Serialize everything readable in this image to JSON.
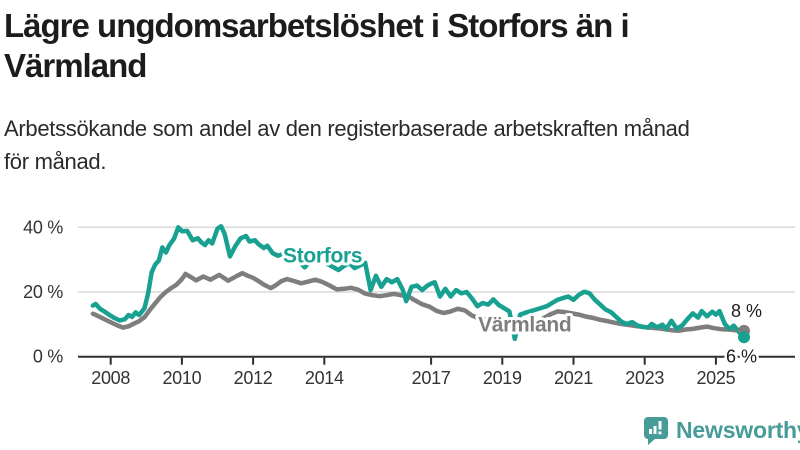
{
  "header": {
    "title_lines": [
      "Lägre ungdomsarbetslöshet i Storfors än i",
      "Värmland"
    ],
    "subtitle_lines": [
      "Arbetssökande som andel av den registerbaserade arbetskraften månad",
      "för månad."
    ]
  },
  "footer": {
    "brand": "Newsworthy",
    "brand_color": "#479c97",
    "brand_icon": "bar-chart-speech-bubble-icon"
  },
  "colors": {
    "storfors_line": "#18a191",
    "varmland_line": "#7e7e7e",
    "gridline": "#d9d9d9",
    "axis": "#2e2e2e",
    "axis_text": "#333333",
    "end_label_text": "#1c1c1c",
    "background": "#ffffff"
  },
  "chart_data": {
    "type": "line",
    "x_unit": "decimal year (monthly data)",
    "y_unit": "percent of registered labour force",
    "xlim": [
      2007.4,
      2025.95
    ],
    "ylim": [
      0,
      43
    ],
    "grid": "horizontal gridlines at 20 and 40 only",
    "legend_position": "inline labels on lines",
    "y_ticks": [
      {
        "value": 0,
        "label": "0 %"
      },
      {
        "value": 20,
        "label": "20 %"
      },
      {
        "value": 40,
        "label": "40 %"
      }
    ],
    "grid_values": [
      20,
      40
    ],
    "x_ticks": [
      2008,
      2010,
      2012,
      2014,
      2017,
      2019,
      2021,
      2023,
      2025
    ],
    "series": [
      {
        "name": "Storfors",
        "color": "#18a191",
        "end_label": "6 %",
        "end_value": 6,
        "label_x": 2012.84,
        "label_y": 29.1,
        "end_dx": -18,
        "end_dy": 25,
        "points": [
          [
            2007.5,
            15.8
          ],
          [
            2007.58,
            16.3
          ],
          [
            2007.7,
            14.8
          ],
          [
            2007.82,
            14.0
          ],
          [
            2007.95,
            13.0
          ],
          [
            2008.1,
            12.0
          ],
          [
            2008.25,
            11.2
          ],
          [
            2008.4,
            11.6
          ],
          [
            2008.5,
            12.9
          ],
          [
            2008.6,
            12.3
          ],
          [
            2008.7,
            13.7
          ],
          [
            2008.8,
            12.9
          ],
          [
            2008.95,
            15.0
          ],
          [
            2009.05,
            19.5
          ],
          [
            2009.15,
            26.0
          ],
          [
            2009.25,
            28.5
          ],
          [
            2009.35,
            29.7
          ],
          [
            2009.45,
            33.8
          ],
          [
            2009.55,
            32.2
          ],
          [
            2009.65,
            34.5
          ],
          [
            2009.78,
            36.5
          ],
          [
            2009.9,
            40.0
          ],
          [
            2010.0,
            38.8
          ],
          [
            2010.15,
            38.9
          ],
          [
            2010.3,
            36.0
          ],
          [
            2010.45,
            36.6
          ],
          [
            2010.55,
            35.3
          ],
          [
            2010.65,
            34.5
          ],
          [
            2010.75,
            36.0
          ],
          [
            2010.85,
            35.0
          ],
          [
            2011.0,
            39.6
          ],
          [
            2011.1,
            40.3
          ],
          [
            2011.2,
            38.0
          ],
          [
            2011.35,
            31.0
          ],
          [
            2011.5,
            34.2
          ],
          [
            2011.65,
            36.6
          ],
          [
            2011.8,
            37.3
          ],
          [
            2011.9,
            35.6
          ],
          [
            2012.05,
            36.0
          ],
          [
            2012.15,
            34.8
          ],
          [
            2012.3,
            33.6
          ],
          [
            2012.4,
            34.3
          ],
          [
            2012.55,
            32.0
          ],
          [
            2012.7,
            31.2
          ],
          [
            2012.85,
            31.8
          ],
          [
            2013.0,
            30.4
          ],
          [
            2013.15,
            30.8
          ],
          [
            2013.3,
            29.4
          ],
          [
            2013.45,
            27.6
          ],
          [
            2013.6,
            29.6
          ],
          [
            2013.75,
            30.0
          ],
          [
            2013.9,
            30.2
          ],
          [
            2014.05,
            28.9
          ],
          [
            2014.2,
            28.0
          ],
          [
            2014.4,
            26.8
          ],
          [
            2014.55,
            28.0
          ],
          [
            2014.7,
            29.0
          ],
          [
            2014.85,
            27.4
          ],
          [
            2015.0,
            28.2
          ],
          [
            2015.15,
            29.0
          ],
          [
            2015.3,
            20.6
          ],
          [
            2015.45,
            25.0
          ],
          [
            2015.6,
            21.6
          ],
          [
            2015.75,
            24.0
          ],
          [
            2015.9,
            23.0
          ],
          [
            2016.05,
            24.0
          ],
          [
            2016.2,
            20.8
          ],
          [
            2016.3,
            17.2
          ],
          [
            2016.45,
            21.6
          ],
          [
            2016.6,
            22.0
          ],
          [
            2016.75,
            20.6
          ],
          [
            2016.9,
            22.0
          ],
          [
            2017.0,
            22.6
          ],
          [
            2017.1,
            23.0
          ],
          [
            2017.25,
            18.6
          ],
          [
            2017.4,
            21.0
          ],
          [
            2017.55,
            18.6
          ],
          [
            2017.7,
            20.6
          ],
          [
            2017.85,
            19.6
          ],
          [
            2018.0,
            20.0
          ],
          [
            2018.15,
            18.0
          ],
          [
            2018.3,
            15.6
          ],
          [
            2018.45,
            16.6
          ],
          [
            2018.6,
            16.1
          ],
          [
            2018.75,
            17.7
          ],
          [
            2018.9,
            16.0
          ],
          [
            2019.05,
            15.0
          ],
          [
            2019.2,
            14.0
          ],
          [
            2019.35,
            5.5
          ],
          [
            2019.5,
            13.0
          ],
          [
            2019.65,
            13.6
          ],
          [
            2019.8,
            14.1
          ],
          [
            2019.95,
            14.6
          ],
          [
            2020.1,
            15.1
          ],
          [
            2020.25,
            15.6
          ],
          [
            2020.4,
            16.6
          ],
          [
            2020.55,
            17.6
          ],
          [
            2020.7,
            18.1
          ],
          [
            2020.85,
            18.6
          ],
          [
            2021.0,
            17.6
          ],
          [
            2021.15,
            19.1
          ],
          [
            2021.3,
            20.1
          ],
          [
            2021.45,
            19.6
          ],
          [
            2021.6,
            17.6
          ],
          [
            2021.75,
            16.1
          ],
          [
            2021.9,
            14.6
          ],
          [
            2022.05,
            13.8
          ],
          [
            2022.2,
            12.3
          ],
          [
            2022.35,
            10.8
          ],
          [
            2022.5,
            10.1
          ],
          [
            2022.65,
            10.7
          ],
          [
            2022.8,
            9.6
          ],
          [
            2022.95,
            9.2
          ],
          [
            2023.1,
            9.0
          ],
          [
            2023.2,
            10.1
          ],
          [
            2023.35,
            9.1
          ],
          [
            2023.5,
            9.9
          ],
          [
            2023.6,
            8.5
          ],
          [
            2023.75,
            11.1
          ],
          [
            2023.9,
            8.7
          ],
          [
            2024.05,
            9.6
          ],
          [
            2024.2,
            11.6
          ],
          [
            2024.35,
            13.4
          ],
          [
            2024.5,
            12.1
          ],
          [
            2024.6,
            14.1
          ],
          [
            2024.75,
            12.5
          ],
          [
            2024.9,
            13.9
          ],
          [
            2025.0,
            13.0
          ],
          [
            2025.1,
            14.1
          ],
          [
            2025.25,
            10.1
          ],
          [
            2025.38,
            8.6
          ],
          [
            2025.5,
            9.6
          ],
          [
            2025.65,
            7.6
          ],
          [
            2025.79,
            6.0
          ]
        ]
      },
      {
        "name": "Värmland",
        "color": "#7e7e7e",
        "end_label": "8 %",
        "end_value": 8,
        "label_x": 2018.32,
        "label_y": 7.8,
        "end_dx": -13,
        "end_dy": -14,
        "points": [
          [
            2007.5,
            13.3
          ],
          [
            2007.6,
            12.8
          ],
          [
            2007.75,
            12.0
          ],
          [
            2007.9,
            11.2
          ],
          [
            2008.05,
            10.4
          ],
          [
            2008.2,
            9.6
          ],
          [
            2008.35,
            9.0
          ],
          [
            2008.5,
            9.4
          ],
          [
            2008.65,
            10.2
          ],
          [
            2008.8,
            11.0
          ],
          [
            2008.95,
            12.2
          ],
          [
            2009.1,
            14.5
          ],
          [
            2009.25,
            16.5
          ],
          [
            2009.4,
            18.5
          ],
          [
            2009.55,
            20.0
          ],
          [
            2009.7,
            21.2
          ],
          [
            2009.85,
            22.3
          ],
          [
            2010.0,
            24.0
          ],
          [
            2010.1,
            25.6
          ],
          [
            2010.25,
            24.6
          ],
          [
            2010.4,
            23.6
          ],
          [
            2010.6,
            24.8
          ],
          [
            2010.8,
            23.8
          ],
          [
            2011.05,
            25.3
          ],
          [
            2011.3,
            23.5
          ],
          [
            2011.55,
            25.0
          ],
          [
            2011.7,
            25.8
          ],
          [
            2011.85,
            25.0
          ],
          [
            2012.0,
            24.4
          ],
          [
            2012.15,
            23.4
          ],
          [
            2012.3,
            22.3
          ],
          [
            2012.5,
            21.2
          ],
          [
            2012.65,
            22.2
          ],
          [
            2012.8,
            23.4
          ],
          [
            2012.95,
            24.0
          ],
          [
            2013.15,
            23.4
          ],
          [
            2013.35,
            22.7
          ],
          [
            2013.55,
            23.2
          ],
          [
            2013.75,
            23.8
          ],
          [
            2013.95,
            23.1
          ],
          [
            2014.15,
            22.0
          ],
          [
            2014.35,
            20.8
          ],
          [
            2014.55,
            21.0
          ],
          [
            2014.75,
            21.3
          ],
          [
            2014.95,
            20.7
          ],
          [
            2015.15,
            19.5
          ],
          [
            2015.35,
            19.0
          ],
          [
            2015.55,
            18.7
          ],
          [
            2015.75,
            19.0
          ],
          [
            2015.95,
            19.4
          ],
          [
            2016.15,
            19.0
          ],
          [
            2016.35,
            18.7
          ],
          [
            2016.55,
            17.4
          ],
          [
            2016.75,
            16.2
          ],
          [
            2016.95,
            15.5
          ],
          [
            2017.15,
            14.2
          ],
          [
            2017.35,
            13.5
          ],
          [
            2017.55,
            14.0
          ],
          [
            2017.75,
            14.8
          ],
          [
            2017.95,
            14.3
          ],
          [
            2018.15,
            12.7
          ],
          [
            2018.35,
            11.8
          ],
          [
            2018.55,
            11.4
          ],
          [
            2018.75,
            11.8
          ],
          [
            2018.95,
            11.0
          ],
          [
            2019.15,
            10.6
          ],
          [
            2019.35,
            10.2
          ],
          [
            2019.55,
            10.0
          ],
          [
            2019.75,
            10.4
          ],
          [
            2019.95,
            10.9
          ],
          [
            2020.15,
            11.8
          ],
          [
            2020.35,
            13.1
          ],
          [
            2020.55,
            14.0
          ],
          [
            2020.75,
            13.8
          ],
          [
            2020.95,
            13.4
          ],
          [
            2021.15,
            13.0
          ],
          [
            2021.35,
            12.4
          ],
          [
            2021.55,
            12.0
          ],
          [
            2021.75,
            11.4
          ],
          [
            2021.95,
            11.0
          ],
          [
            2022.15,
            10.5
          ],
          [
            2022.35,
            10.1
          ],
          [
            2022.55,
            9.8
          ],
          [
            2022.75,
            9.5
          ],
          [
            2022.95,
            9.2
          ],
          [
            2023.15,
            9.0
          ],
          [
            2023.35,
            8.8
          ],
          [
            2023.55,
            8.5
          ],
          [
            2023.75,
            8.2
          ],
          [
            2023.95,
            8.0
          ],
          [
            2024.15,
            8.4
          ],
          [
            2024.35,
            8.6
          ],
          [
            2024.55,
            9.0
          ],
          [
            2024.75,
            9.3
          ],
          [
            2024.95,
            8.8
          ],
          [
            2025.15,
            8.5
          ],
          [
            2025.35,
            8.4
          ],
          [
            2025.55,
            8.2
          ],
          [
            2025.79,
            8.0
          ]
        ]
      }
    ]
  }
}
